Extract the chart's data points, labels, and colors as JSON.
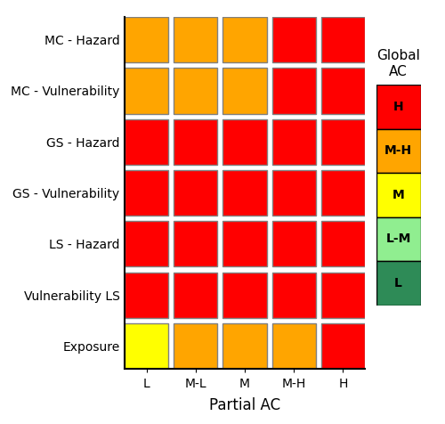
{
  "rows": [
    "MC - Hazard",
    "MC - Vulnerability",
    "GS - Hazard",
    "GS - Vulnerability",
    "LS - Hazard",
    "Vulnerability LS",
    "Exposure"
  ],
  "cols": [
    "L",
    "M-L",
    "M",
    "M-H",
    "H"
  ],
  "colors": [
    [
      "#FFA500",
      "#FFA500",
      "#FFA500",
      "#FF0000",
      "#FF0000"
    ],
    [
      "#FFA500",
      "#FFA500",
      "#FFA500",
      "#FF0000",
      "#FF0000"
    ],
    [
      "#FF0000",
      "#FF0000",
      "#FF0000",
      "#FF0000",
      "#FF0000"
    ],
    [
      "#FF0000",
      "#FF0000",
      "#FF0000",
      "#FF0000",
      "#FF0000"
    ],
    [
      "#FF0000",
      "#FF0000",
      "#FF0000",
      "#FF0000",
      "#FF0000"
    ],
    [
      "#FF0000",
      "#FF0000",
      "#FF0000",
      "#FF0000",
      "#FF0000"
    ],
    [
      "#FFFF00",
      "#FFA500",
      "#FFA500",
      "#FFA500",
      "#FF0000"
    ]
  ],
  "xlabel": "Partial AC",
  "legend_title_line1": "Global",
  "legend_title_line2": "AC",
  "legend_labels": [
    "H",
    "M-H",
    "M",
    "L-M",
    "L"
  ],
  "legend_colors": [
    "#FF0000",
    "#FFA500",
    "#FFFF00",
    "#90EE90",
    "#2E8B57"
  ],
  "background_color": "#ffffff",
  "edge_color": "#808080",
  "edge_linewidth": 1.0,
  "row_label_fontsize": 10,
  "col_label_fontsize": 11,
  "xlabel_fontsize": 12
}
